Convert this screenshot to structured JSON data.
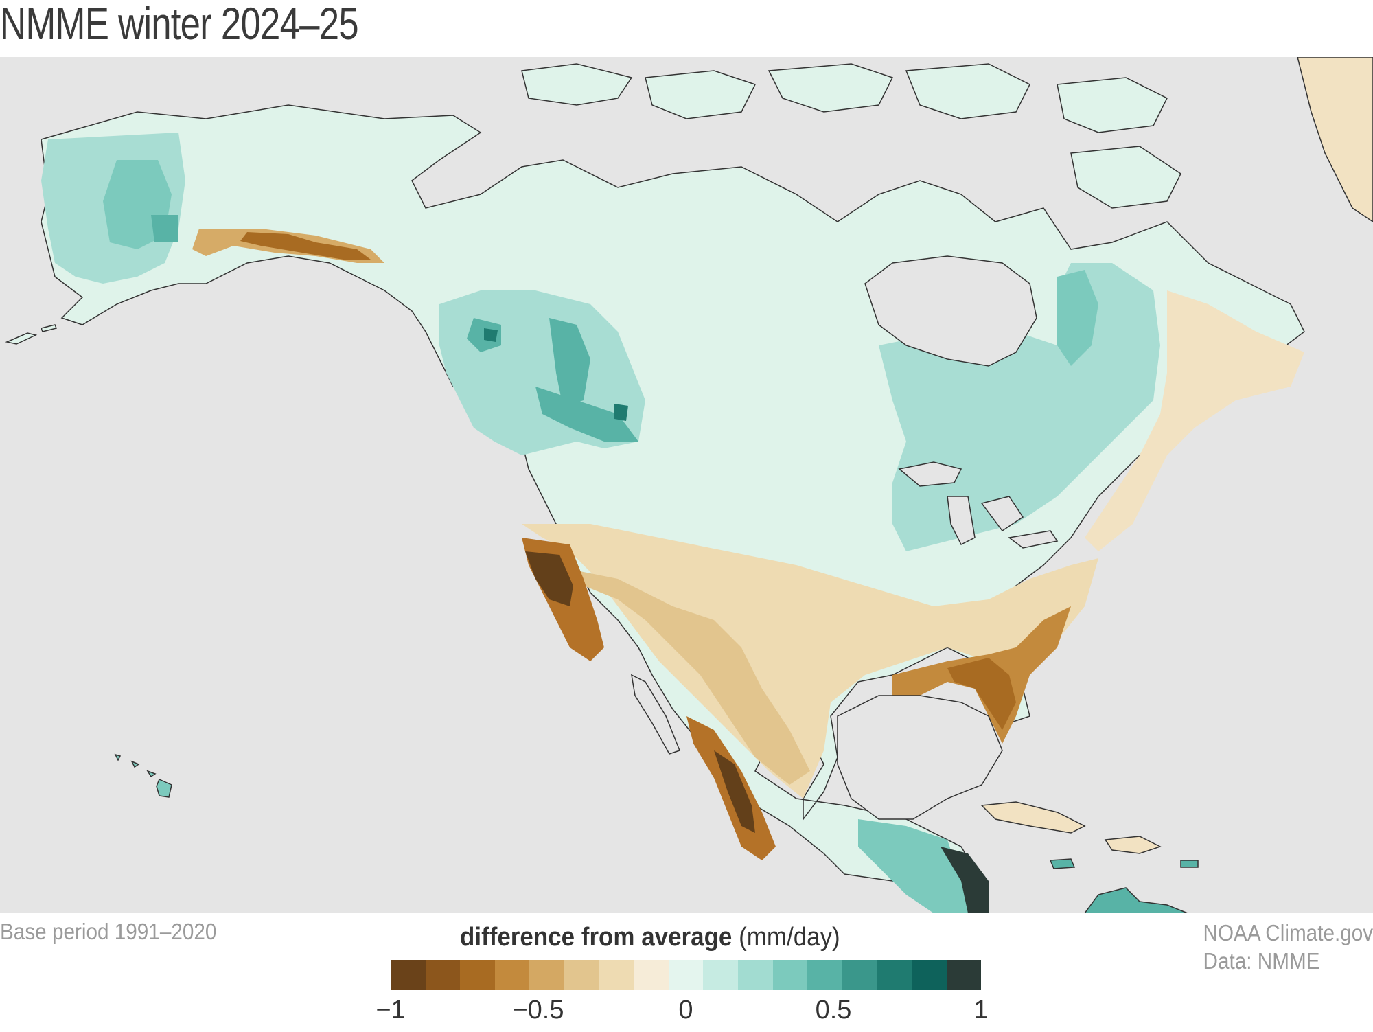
{
  "title": "NMME winter 2024–25",
  "base_period": "Base period 1991–2020",
  "credit": {
    "line1": "NOAA Climate.gov",
    "line2": "Data: NMME"
  },
  "legend": {
    "title_bold": "difference from average",
    "title_unit": " (mm/day)",
    "range": [
      -1,
      1
    ],
    "ticks": [
      {
        "label": "−1",
        "value": -1
      },
      {
        "label": "−0.5",
        "value": -0.5
      },
      {
        "label": "0",
        "value": 0
      },
      {
        "label": "0.5",
        "value": 0.5
      },
      {
        "label": "1",
        "value": 1
      }
    ],
    "colors": [
      "#6a4219",
      "#8c561c",
      "#a86b22",
      "#c38a3d",
      "#d4a863",
      "#e2c58e",
      "#eedbb2",
      "#f6ecd8",
      "#e4f5ee",
      "#c6ebe2",
      "#a2dcd1",
      "#7ccabd",
      "#58b3a6",
      "#3a978b",
      "#1f7b70",
      "#0e625b",
      "#2b3b37"
    ]
  },
  "colors": {
    "ocean": "#e5e5e5",
    "wet_light": "#e0f4ec",
    "wet_mid": "#a8ddd3",
    "wet_strong": "#5fb5a8",
    "wet_max": "#1f7b70",
    "dry_light": "#f2e2c2",
    "dry_mid": "#d6ab67",
    "dry_strong": "#b47228",
    "dry_max": "#63401a",
    "coast": "#333333"
  }
}
